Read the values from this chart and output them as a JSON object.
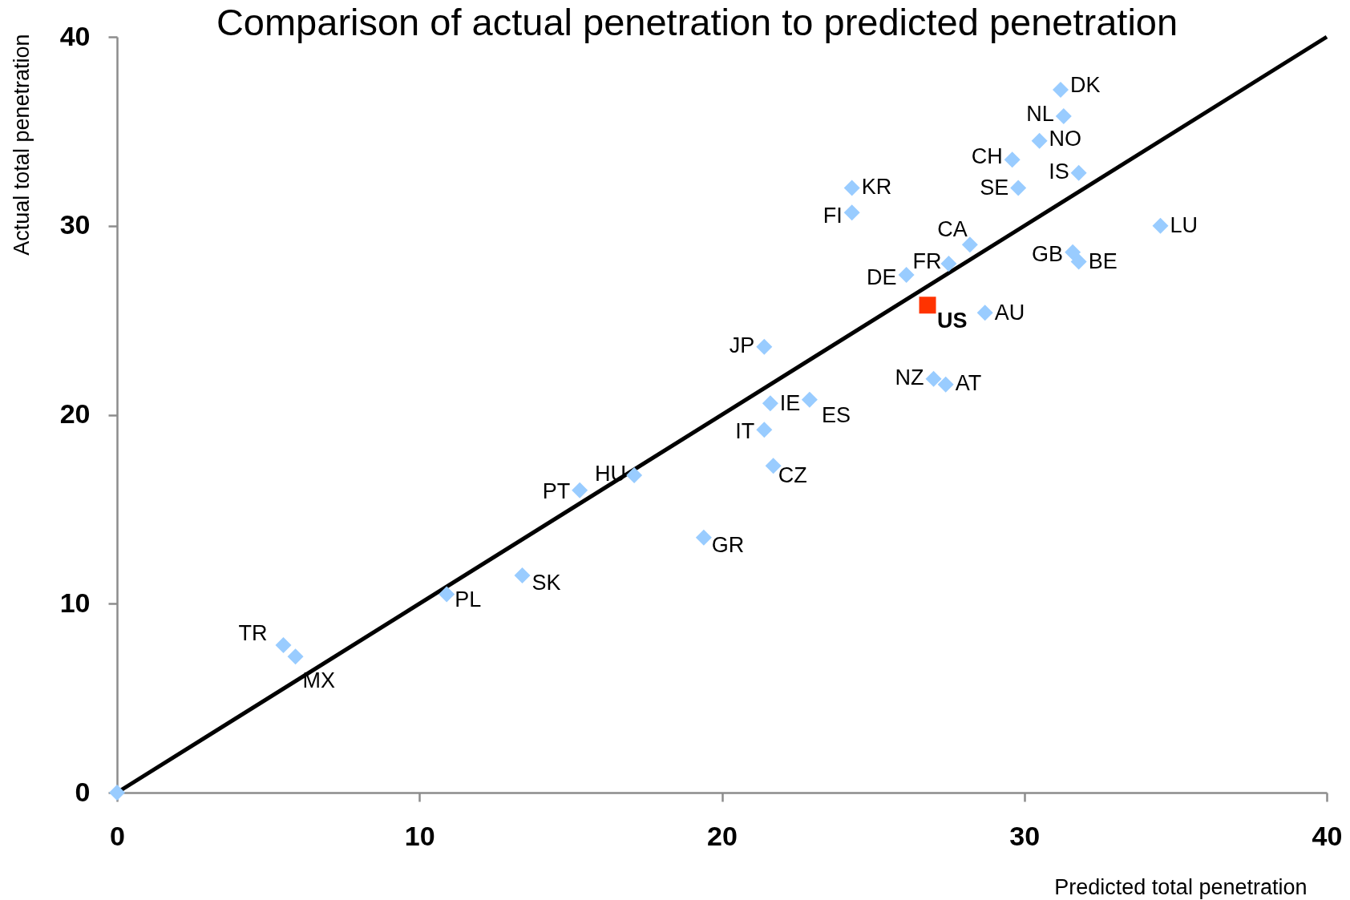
{
  "chart_data": {
    "type": "scatter",
    "title": "Comparison of actual penetration to predicted penetration",
    "xlabel": "Predicted total penetration",
    "ylabel": "Actual total penetration",
    "xlim": [
      0,
      40
    ],
    "ylim": [
      0,
      40
    ],
    "xticks": [
      0,
      10,
      20,
      30,
      40
    ],
    "yticks": [
      0,
      10,
      20,
      30,
      40
    ],
    "grid": false,
    "series": [
      {
        "type": "line",
        "color": "#000000",
        "x": [
          0,
          40
        ],
        "values": [
          0,
          40
        ]
      },
      {
        "color": "#99ccff",
        "marker": "diamond",
        "x": [
          0,
          31.2,
          31.3,
          30.5,
          29.6,
          31.8,
          29.8,
          24.3,
          24.3,
          34.5,
          28.2,
          31.6,
          31.8,
          27.5,
          26.1,
          28.7,
          21.4,
          27.0,
          27.4,
          21.6,
          22.9,
          21.4,
          21.7,
          17.1,
          15.3,
          19.4,
          13.4,
          10.9,
          5.5,
          5.9
        ],
        "values": [
          0,
          37.2,
          35.8,
          34.5,
          33.5,
          32.8,
          32.0,
          32.0,
          30.7,
          30.0,
          29.0,
          28.6,
          28.1,
          28.0,
          27.4,
          25.4,
          23.6,
          21.9,
          21.6,
          20.6,
          20.8,
          19.2,
          17.3,
          16.8,
          16.0,
          13.5,
          11.5,
          10.5,
          7.8,
          7.2
        ]
      },
      {
        "name": "US",
        "color": "#ff3300",
        "marker": "square",
        "x": [
          26.8
        ],
        "values": [
          25.8
        ]
      }
    ],
    "annotations": [
      {
        "text": "DK",
        "x": 31.2,
        "y": 37.2
      },
      {
        "text": "NL",
        "x": 31.3,
        "y": 35.8
      },
      {
        "text": "NO",
        "x": 30.5,
        "y": 34.5
      },
      {
        "text": "CH",
        "x": 29.6,
        "y": 33.5
      },
      {
        "text": "IS",
        "x": 31.8,
        "y": 32.8
      },
      {
        "text": "SE",
        "x": 29.8,
        "y": 32.0
      },
      {
        "text": "KR",
        "x": 24.3,
        "y": 32.0
      },
      {
        "text": "FI",
        "x": 24.3,
        "y": 30.7
      },
      {
        "text": "LU",
        "x": 34.5,
        "y": 30.0
      },
      {
        "text": "CA",
        "x": 28.2,
        "y": 29.0
      },
      {
        "text": "GB",
        "x": 31.6,
        "y": 28.6
      },
      {
        "text": "BE",
        "x": 31.8,
        "y": 28.1
      },
      {
        "text": "FR",
        "x": 27.5,
        "y": 28.0
      },
      {
        "text": "DE",
        "x": 26.1,
        "y": 27.4
      },
      {
        "text": "AU",
        "x": 28.7,
        "y": 25.4
      },
      {
        "text": "JP",
        "x": 21.4,
        "y": 23.6
      },
      {
        "text": "NZ",
        "x": 27.0,
        "y": 21.9
      },
      {
        "text": "AT",
        "x": 27.4,
        "y": 21.6
      },
      {
        "text": "IE",
        "x": 21.6,
        "y": 20.6
      },
      {
        "text": "ES",
        "x": 22.9,
        "y": 20.8
      },
      {
        "text": "IT",
        "x": 21.4,
        "y": 19.2
      },
      {
        "text": "CZ",
        "x": 21.7,
        "y": 17.3
      },
      {
        "text": "HU",
        "x": 17.1,
        "y": 16.8
      },
      {
        "text": "PT",
        "x": 15.3,
        "y": 16.0
      },
      {
        "text": "GR",
        "x": 19.4,
        "y": 13.5
      },
      {
        "text": "SK",
        "x": 13.4,
        "y": 11.5
      },
      {
        "text": "PL",
        "x": 10.9,
        "y": 10.5
      },
      {
        "text": "TR",
        "x": 5.5,
        "y": 7.8
      },
      {
        "text": "MX",
        "x": 5.9,
        "y": 7.2
      }
    ]
  }
}
